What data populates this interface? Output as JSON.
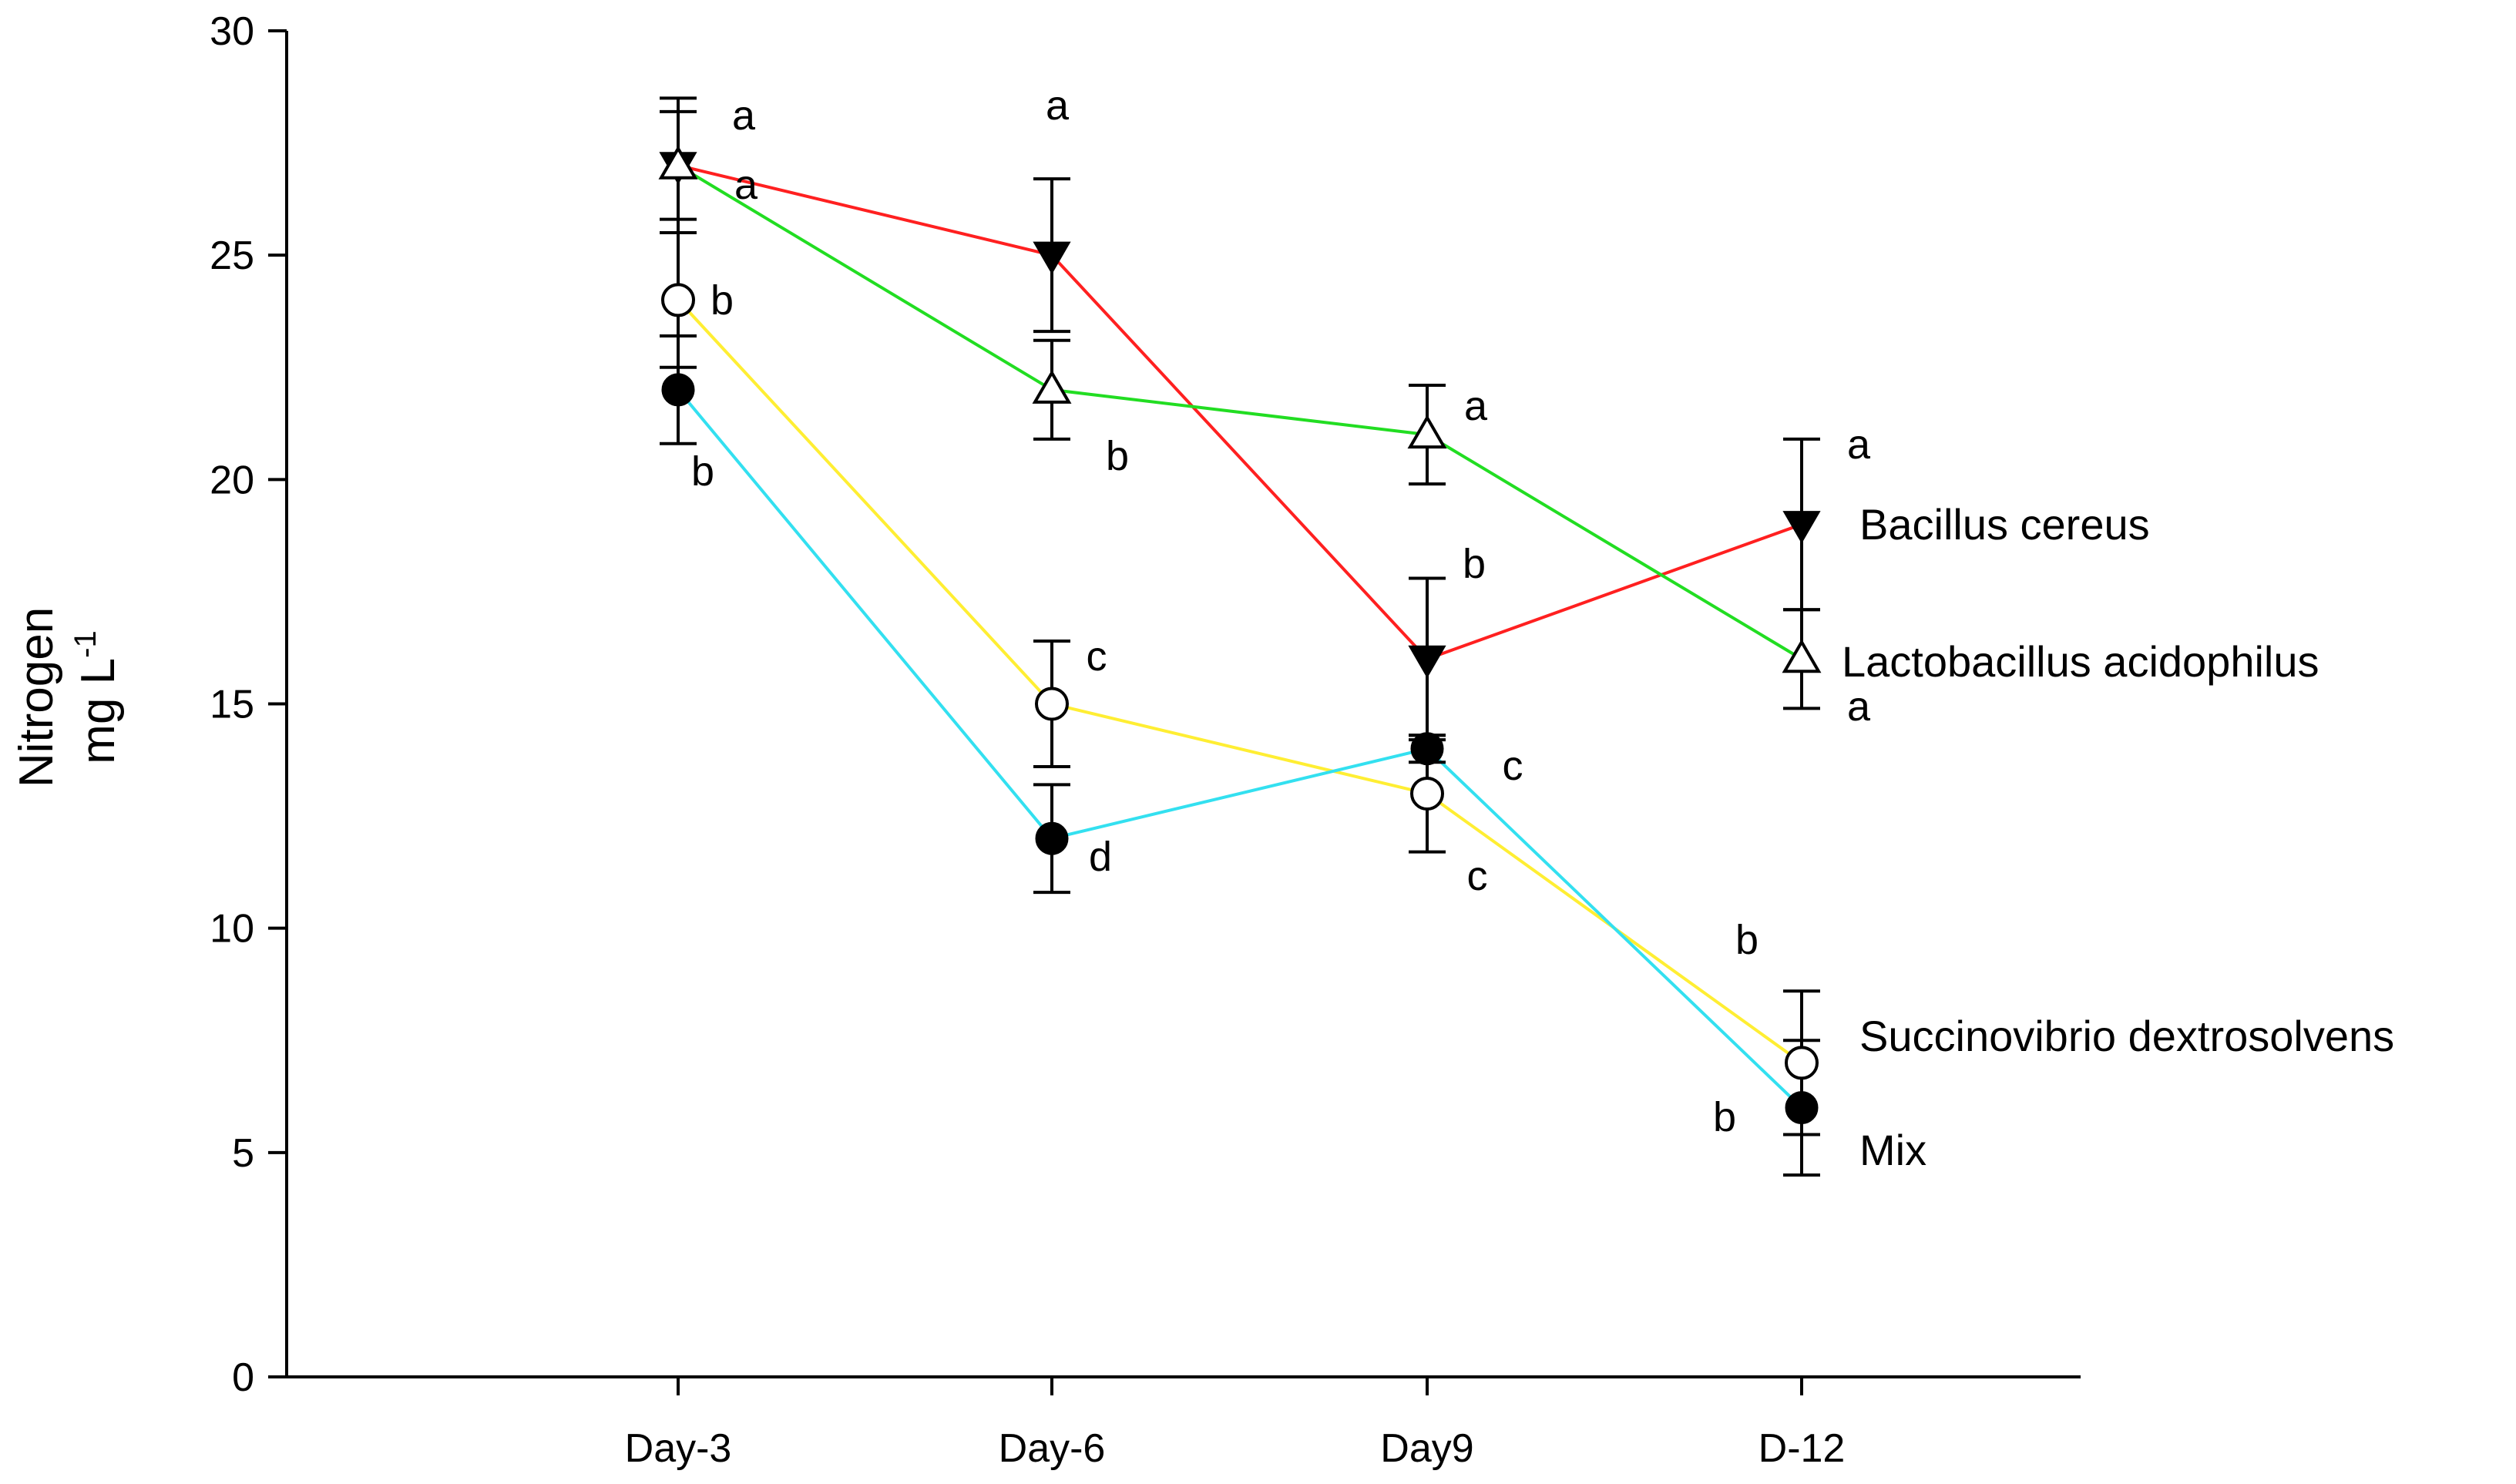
{
  "chart_data": {
    "type": "line",
    "title": "",
    "xlabel": "",
    "ylabel_line1": "Nitrogen",
    "ylabel_line2": "mg L",
    "ylabel_sup": "-1",
    "categories": [
      "Day-3",
      "Day-6",
      "Day9",
      "D-12"
    ],
    "ylim": [
      0,
      30
    ],
    "yticks": [
      0,
      5,
      10,
      15,
      20,
      25,
      30
    ],
    "grid": false,
    "series": [
      {
        "name": "Bacillus cereus",
        "color": "#ff2020",
        "marker": "triangle-down-filled",
        "values": [
          27,
          25,
          16,
          19
        ],
        "errors": [
          1.5,
          1.7,
          1.8,
          1.9
        ],
        "letters": [
          "a",
          "a",
          "b",
          "a"
        ]
      },
      {
        "name": "Lactobacillus acidophilus",
        "color": "#22dd22",
        "marker": "triangle-up-open",
        "values": [
          27,
          22,
          21,
          16
        ],
        "errors": [
          1.2,
          1.1,
          1.1,
          1.1
        ],
        "letters": [
          "a",
          "b",
          "a",
          "a"
        ]
      },
      {
        "name": "Succinovibrio dextrosolvens",
        "color": "#ffee33",
        "marker": "circle-open",
        "values": [
          24,
          15,
          13,
          7
        ],
        "errors": [
          1.5,
          1.4,
          1.3,
          1.6
        ],
        "letters": [
          "b",
          "c",
          "c",
          "b"
        ]
      },
      {
        "name": "Mix",
        "color": "#33e0f0",
        "marker": "circle-filled",
        "values": [
          22,
          12,
          14,
          6
        ],
        "errors": [
          1.2,
          1.2,
          0.3,
          1.5
        ],
        "letters": [
          "b",
          "d",
          "c",
          "b"
        ]
      }
    ]
  }
}
